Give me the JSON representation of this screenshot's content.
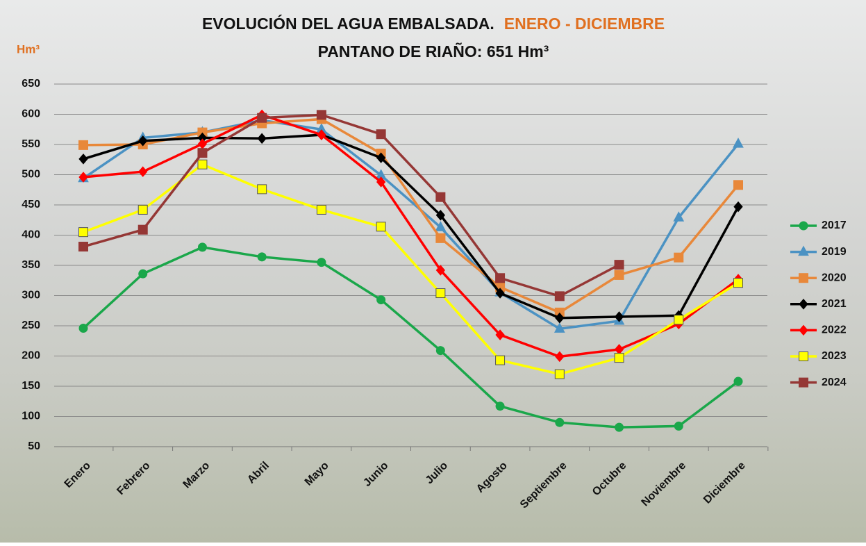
{
  "chart_data": {
    "type": "line",
    "title": "EVOLUCIÓN DEL AGUA EMBALSADA.",
    "title_highlight": "ENERO - DICIEMBRE",
    "subtitle": "PANTANO DE  RIAÑO:  651  Hm³",
    "y_label": "Hm³",
    "categories": [
      "Enero",
      "Febrero",
      "Marzo",
      "Abril",
      "Mayo",
      "Junio",
      "Julio",
      "Agosto",
      "Septiembre",
      "Octubre",
      "Noviembre",
      "Diciembre"
    ],
    "ylim": [
      50,
      650
    ],
    "yticks": [
      50,
      100,
      150,
      200,
      250,
      300,
      350,
      400,
      450,
      500,
      550,
      600,
      650
    ],
    "grid": true,
    "legend": "right",
    "series": [
      {
        "name": "2017",
        "color": "#1aa74a",
        "marker": "circle",
        "values": [
          246,
          336,
          380,
          364,
          355,
          293,
          209,
          117,
          90,
          82,
          84,
          158
        ]
      },
      {
        "name": "2019",
        "color": "#4b92c3",
        "marker": "triangle",
        "values": [
          494,
          561,
          570,
          590,
          575,
          499,
          413,
          305,
          245,
          258,
          429,
          551
        ]
      },
      {
        "name": "2020",
        "color": "#e8883a",
        "marker": "square",
        "values": [
          549,
          550,
          570,
          585,
          592,
          535,
          395,
          314,
          272,
          334,
          363,
          483
        ]
      },
      {
        "name": "2021",
        "color": "#000000",
        "marker": "diamond",
        "values": [
          526,
          556,
          561,
          560,
          566,
          528,
          433,
          304,
          263,
          265,
          267,
          447
        ]
      },
      {
        "name": "2022",
        "color": "#ff0000",
        "marker": "diamond",
        "values": [
          496,
          505,
          551,
          599,
          566,
          488,
          342,
          235,
          199,
          211,
          253,
          327
        ]
      },
      {
        "name": "2023",
        "color": "#ffff00",
        "marker": "square",
        "values": [
          405,
          442,
          517,
          476,
          442,
          414,
          304,
          193,
          170,
          197,
          260,
          321
        ]
      },
      {
        "name": "2024",
        "color": "#953735",
        "marker": "square",
        "values": [
          381,
          409,
          536,
          594,
          599,
          567,
          463,
          329,
          299,
          351,
          null,
          null
        ]
      }
    ]
  }
}
